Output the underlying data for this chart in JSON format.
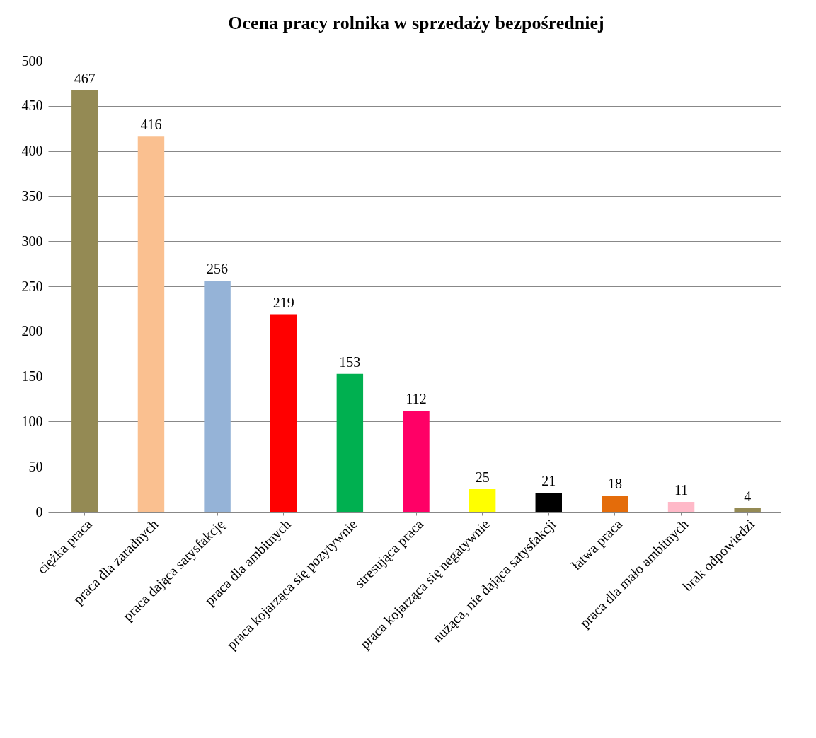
{
  "chart_data": {
    "type": "bar",
    "title": "Ocena pracy rolnika w sprzedaży bezpośredniej",
    "categories": [
      "ciężka praca",
      "praca dla zaradnych",
      "praca dająca satysfakcję",
      "praca dla ambitnych",
      "praca kojarząca się pozytywnie",
      "stresująca praca",
      "praca kojarząca się negatywnie",
      "nużąca, nie dająca satysfakcji",
      "łatwa praca",
      "praca dla mało ambitnych",
      "brak odpowiedzi"
    ],
    "values": [
      467,
      416,
      256,
      219,
      153,
      112,
      25,
      21,
      18,
      11,
      4
    ],
    "colors": [
      "#948a54",
      "#fac090",
      "#95b3d7",
      "#ff0000",
      "#00b050",
      "#ff0066",
      "#ffff00",
      "#000000",
      "#e46c0a",
      "#ffb9c8",
      "#948a54"
    ],
    "ylim": [
      0,
      500
    ],
    "yticks": [
      0,
      50,
      100,
      150,
      200,
      250,
      300,
      350,
      400,
      450,
      500
    ],
    "grid": "y",
    "data_labels": true
  }
}
